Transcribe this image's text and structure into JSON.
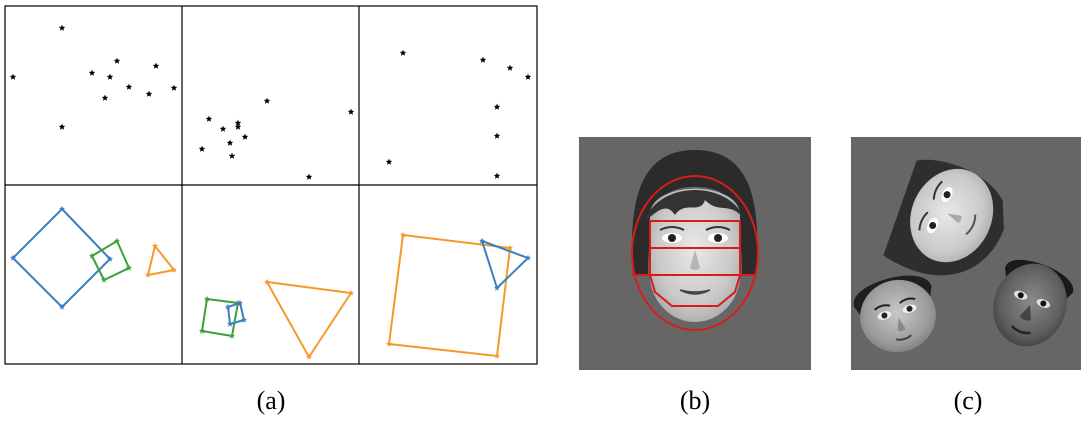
{
  "captions": {
    "a": "(a)",
    "b": "(b)",
    "c": "(c)"
  },
  "colors": {
    "blue": "#3a7fbf",
    "green": "#3aa13a",
    "orange": "#f59a2a",
    "red": "#d81c1c",
    "grey_bg": "#666666",
    "grid": "#000000"
  },
  "icons": {
    "star": "star-marker-icon",
    "face": "face-photo-icon"
  }
}
